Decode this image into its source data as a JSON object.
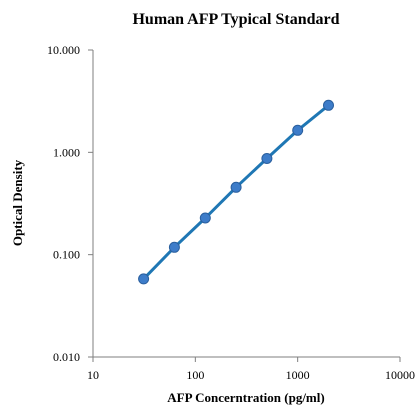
{
  "chart_data": {
    "type": "scatter",
    "title": "Human AFP Typical Standard",
    "xlabel": "AFP Concerntration (pg/ml)",
    "ylabel": "Optical Density",
    "x_scale": "log",
    "y_scale": "log",
    "xlim": [
      10,
      10000
    ],
    "ylim": [
      0.01,
      10
    ],
    "x_ticks": [
      "10",
      "100",
      "1000",
      "10000"
    ],
    "y_ticks": [
      "0.010",
      "0.100",
      "1.000",
      "10.000"
    ],
    "grid": false,
    "legend": "none",
    "series": [
      {
        "x": [
          31.25,
          62.5,
          125,
          250,
          500,
          1000,
          2000
        ],
        "y": [
          0.058,
          0.118,
          0.228,
          0.455,
          0.87,
          1.64,
          2.88
        ]
      }
    ],
    "colors": {
      "marker": "#3d7cc9",
      "line": "#1f77b4",
      "axis": "#7f7f7f"
    }
  }
}
